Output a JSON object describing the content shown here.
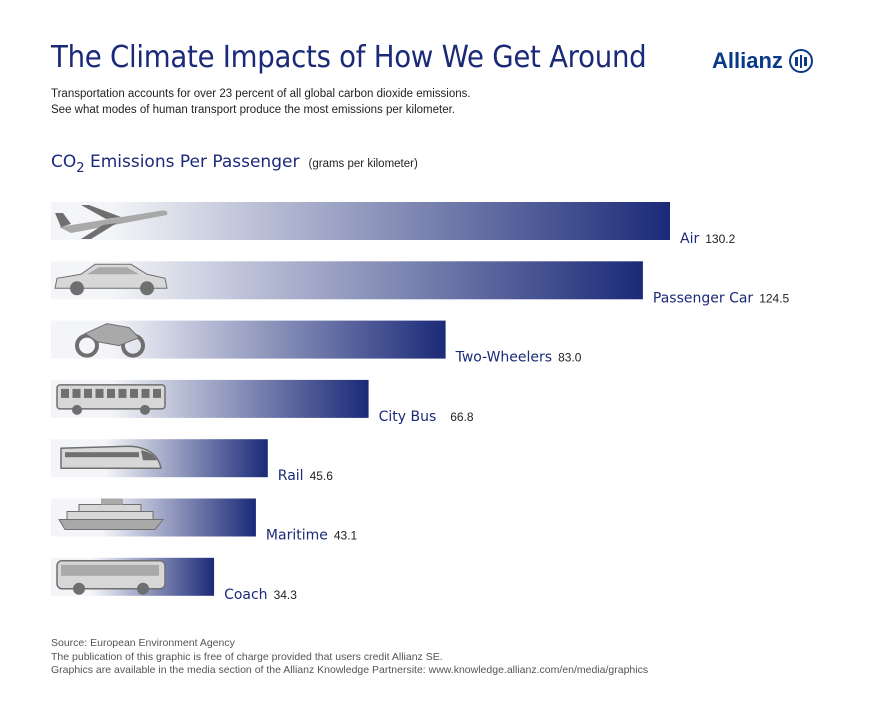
{
  "header": {
    "title": "The Climate Impacts of How We Get Around",
    "logo_text": "Allianz"
  },
  "subtitle": {
    "line1": "Transportation accounts for over 23 percent of all global carbon dioxide emissions.",
    "line2": "See what modes of human transport produce the most emissions per kilometer."
  },
  "chart_heading": {
    "co": "CO",
    "sub": "2",
    "rest": " Emissions Per Passenger",
    "unit": "(grams per kilometer)"
  },
  "colors": {
    "bar_dark": "#1b2a78",
    "bar_light": "#f4f5f8",
    "title": "#1b2a78"
  },
  "chart_data": {
    "type": "bar",
    "orientation": "horizontal",
    "title": "CO2 Emissions Per Passenger (grams per kilometer)",
    "xlabel": "",
    "ylabel": "",
    "categories": [
      "Air",
      "Passenger Car",
      "Two-Wheelers",
      "City Bus",
      "Rail",
      "Maritime",
      "Coach"
    ],
    "values": [
      130.2,
      124.5,
      83.0,
      66.8,
      45.6,
      43.1,
      34.3
    ],
    "value_labels": [
      "130.2",
      "124.5",
      "83.0",
      "66.8",
      "45.6",
      "43.1",
      "34.3"
    ],
    "icons": [
      "airplane-icon",
      "car-icon",
      "motorcycle-icon",
      "city-bus-icon",
      "train-icon",
      "cruise-ship-icon",
      "coach-icon"
    ]
  },
  "footer": {
    "source": "Source: European Environment Agency",
    "credit": "The publication of this graphic is free of charge provided that users credit Allianz SE.",
    "availability": "Graphics are available in the media section of the Allianz Knowledge Partnersite: www.knowledge.allianz.com/en/media/graphics"
  }
}
